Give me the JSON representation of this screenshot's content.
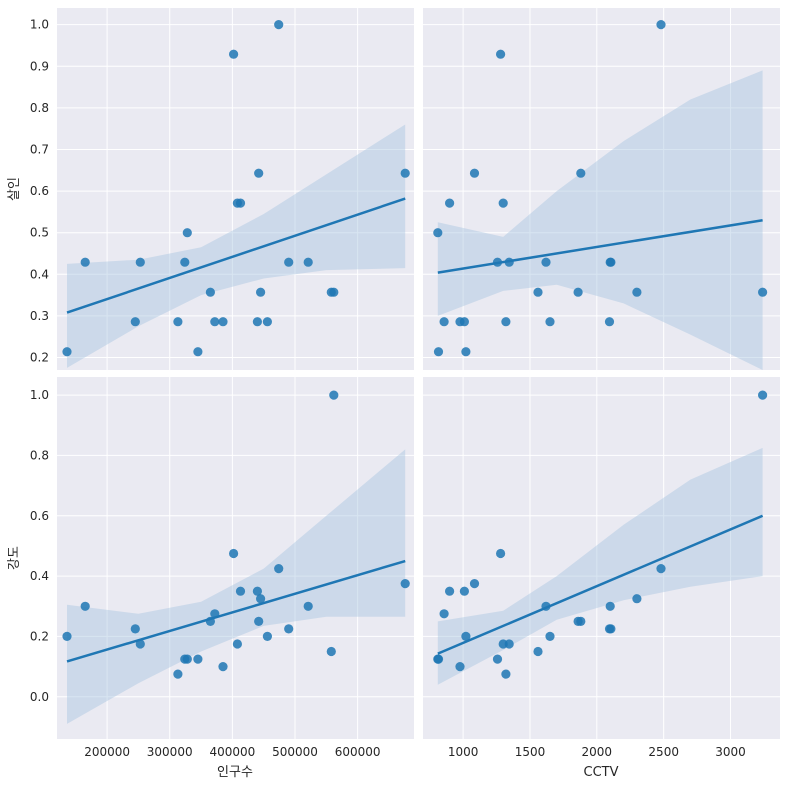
{
  "chart_data": {
    "type": "scatter",
    "style": "seaborn pairplot (kind=reg) with regression line and 95% CI band",
    "point_color": "#1f77b4",
    "band_color": "#a9c5e0",
    "background": "#eaeaf2",
    "grid": true,
    "x_variables": [
      {
        "label": "인구수",
        "ticks": [
          200000,
          300000,
          400000,
          500000,
          600000
        ],
        "range": [
          120000,
          690000
        ]
      },
      {
        "label": "CCTV",
        "ticks": [
          1000,
          1500,
          2000,
          2500,
          3000
        ],
        "range": [
          700,
          3370
        ]
      }
    ],
    "y_variables": [
      {
        "label": "살인",
        "ticks": [
          0.2,
          0.3,
          0.4,
          0.5,
          0.6,
          0.7,
          0.8,
          0.9,
          1.0
        ],
        "range": [
          0.17,
          1.04
        ]
      },
      {
        "label": "강도",
        "ticks": [
          0.0,
          0.2,
          0.4,
          0.6,
          0.8,
          1.0
        ],
        "range": [
          -0.14,
          1.06
        ]
      }
    ],
    "panels": [
      {
        "id": "p00",
        "row": 0,
        "col": 0,
        "points": [
          [
            136000,
            0.214
          ],
          [
            165000,
            0.429
          ],
          [
            245000,
            0.286
          ],
          [
            253000,
            0.429
          ],
          [
            313000,
            0.286
          ],
          [
            324000,
            0.429
          ],
          [
            328000,
            0.5
          ],
          [
            345000,
            0.214
          ],
          [
            365000,
            0.357
          ],
          [
            372000,
            0.286
          ],
          [
            385000,
            0.286
          ],
          [
            402000,
            0.929
          ],
          [
            408000,
            0.571
          ],
          [
            413000,
            0.571
          ],
          [
            440000,
            0.286
          ],
          [
            442000,
            0.643
          ],
          [
            445000,
            0.357
          ],
          [
            456000,
            0.286
          ],
          [
            474000,
            1.0
          ],
          [
            490000,
            0.429
          ],
          [
            521000,
            0.429
          ],
          [
            558000,
            0.357
          ],
          [
            562000,
            0.357
          ],
          [
            676000,
            0.643
          ]
        ],
        "line": [
          [
            136000,
            0.308
          ],
          [
            676000,
            0.582
          ]
        ],
        "band_upper": [
          [
            136000,
            0.425
          ],
          [
            250000,
            0.435
          ],
          [
            350000,
            0.465
          ],
          [
            450000,
            0.545
          ],
          [
            550000,
            0.64
          ],
          [
            676000,
            0.76
          ]
        ],
        "band_lower": [
          [
            136000,
            0.175
          ],
          [
            250000,
            0.275
          ],
          [
            350000,
            0.35
          ],
          [
            450000,
            0.39
          ],
          [
            550000,
            0.41
          ],
          [
            676000,
            0.415
          ]
        ]
      },
      {
        "id": "p01",
        "row": 0,
        "col": 1,
        "points": [
          [
            811,
            0.5
          ],
          [
            816,
            0.214
          ],
          [
            858,
            0.286
          ],
          [
            899,
            0.571
          ],
          [
            977,
            0.286
          ],
          [
            1010,
            0.286
          ],
          [
            1021,
            0.214
          ],
          [
            1085,
            0.643
          ],
          [
            1257,
            0.429
          ],
          [
            1280,
            0.929
          ],
          [
            1300,
            0.571
          ],
          [
            1320,
            0.286
          ],
          [
            1345,
            0.429
          ],
          [
            1560,
            0.357
          ],
          [
            1620,
            0.429
          ],
          [
            1650,
            0.286
          ],
          [
            1860,
            0.357
          ],
          [
            1880,
            0.643
          ],
          [
            2095,
            0.286
          ],
          [
            2100,
            0.429
          ],
          [
            2105,
            0.429
          ],
          [
            2300,
            0.357
          ],
          [
            2480,
            1.0
          ],
          [
            3240,
            0.357
          ]
        ],
        "line": [
          [
            811,
            0.404
          ],
          [
            3240,
            0.53
          ]
        ],
        "band_upper": [
          [
            811,
            0.525
          ],
          [
            1300,
            0.49
          ],
          [
            1700,
            0.6
          ],
          [
            2200,
            0.72
          ],
          [
            2700,
            0.82
          ],
          [
            3240,
            0.89
          ]
        ],
        "band_lower": [
          [
            811,
            0.3
          ],
          [
            1300,
            0.36
          ],
          [
            1700,
            0.375
          ],
          [
            2200,
            0.33
          ],
          [
            2700,
            0.255
          ],
          [
            3240,
            0.17
          ]
        ]
      },
      {
        "id": "p10",
        "row": 1,
        "col": 0,
        "points": [
          [
            136000,
            0.2
          ],
          [
            165000,
            0.3
          ],
          [
            245000,
            0.225
          ],
          [
            253000,
            0.175
          ],
          [
            313000,
            0.075
          ],
          [
            324000,
            0.125
          ],
          [
            328000,
            0.125
          ],
          [
            345000,
            0.125
          ],
          [
            365000,
            0.25
          ],
          [
            372000,
            0.275
          ],
          [
            385000,
            0.1
          ],
          [
            402000,
            0.475
          ],
          [
            408000,
            0.175
          ],
          [
            413000,
            0.35
          ],
          [
            440000,
            0.35
          ],
          [
            442000,
            0.25
          ],
          [
            445000,
            0.325
          ],
          [
            456000,
            0.2
          ],
          [
            474000,
            0.425
          ],
          [
            490000,
            0.225
          ],
          [
            521000,
            0.3
          ],
          [
            558000,
            0.15
          ],
          [
            562000,
            1.0
          ],
          [
            676000,
            0.375
          ]
        ],
        "line": [
          [
            136000,
            0.117
          ],
          [
            676000,
            0.45
          ]
        ],
        "band_upper": [
          [
            136000,
            0.305
          ],
          [
            250000,
            0.275
          ],
          [
            350000,
            0.315
          ],
          [
            450000,
            0.425
          ],
          [
            550000,
            0.6
          ],
          [
            676000,
            0.82
          ]
        ],
        "band_lower": [
          [
            136000,
            -0.09
          ],
          [
            250000,
            0.045
          ],
          [
            350000,
            0.15
          ],
          [
            450000,
            0.235
          ],
          [
            550000,
            0.265
          ],
          [
            676000,
            0.265
          ]
        ]
      },
      {
        "id": "p11",
        "row": 1,
        "col": 1,
        "points": [
          [
            811,
            0.125
          ],
          [
            816,
            0.125
          ],
          [
            858,
            0.275
          ],
          [
            899,
            0.35
          ],
          [
            977,
            0.1
          ],
          [
            1010,
            0.35
          ],
          [
            1021,
            0.2
          ],
          [
            1085,
            0.375
          ],
          [
            1257,
            0.125
          ],
          [
            1280,
            0.475
          ],
          [
            1300,
            0.175
          ],
          [
            1320,
            0.075
          ],
          [
            1345,
            0.175
          ],
          [
            1560,
            0.15
          ],
          [
            1620,
            0.3
          ],
          [
            1650,
            0.2
          ],
          [
            1860,
            0.25
          ],
          [
            1880,
            0.25
          ],
          [
            2095,
            0.225
          ],
          [
            2100,
            0.3
          ],
          [
            2105,
            0.225
          ],
          [
            2300,
            0.325
          ],
          [
            2480,
            0.425
          ],
          [
            3240,
            1.0
          ]
        ],
        "line": [
          [
            811,
            0.143
          ],
          [
            3240,
            0.6
          ]
        ],
        "band_upper": [
          [
            811,
            0.25
          ],
          [
            1300,
            0.285
          ],
          [
            1700,
            0.4
          ],
          [
            2200,
            0.57
          ],
          [
            2700,
            0.72
          ],
          [
            3240,
            0.825
          ]
        ],
        "band_lower": [
          [
            811,
            0.04
          ],
          [
            1300,
            0.155
          ],
          [
            1700,
            0.255
          ],
          [
            2200,
            0.32
          ],
          [
            2700,
            0.365
          ],
          [
            3240,
            0.4
          ]
        ]
      }
    ]
  }
}
